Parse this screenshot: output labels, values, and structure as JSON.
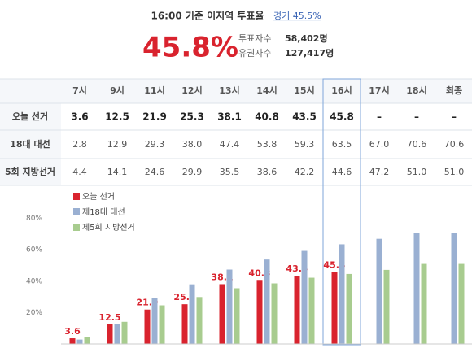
{
  "header": {
    "title": "16:00 기준 이지역 투표율",
    "link": "경기 45.5%",
    "rate": "45.8%",
    "stats": [
      {
        "label": "투표자수",
        "value": "58,402명"
      },
      {
        "label": "유권자수",
        "value": "127,417명"
      }
    ]
  },
  "table": {
    "columns": [
      "7시",
      "9시",
      "11시",
      "12시",
      "13시",
      "14시",
      "15시",
      "16시",
      "17시",
      "18시",
      "최종"
    ],
    "rows": [
      {
        "label": "오늘 선거",
        "cells": [
          "3.6",
          "12.5",
          "21.9",
          "25.3",
          "38.1",
          "40.8",
          "43.5",
          "45.8",
          "–",
          "–",
          "–"
        ]
      },
      {
        "label": "18대 대선",
        "cells": [
          "2.8",
          "12.9",
          "29.3",
          "38.0",
          "47.4",
          "53.8",
          "59.3",
          "63.5",
          "67.0",
          "70.6",
          "70.6"
        ]
      },
      {
        "label": "5회 지방선거",
        "cells": [
          "4.4",
          "14.1",
          "24.6",
          "29.9",
          "35.5",
          "38.6",
          "42.2",
          "44.6",
          "47.2",
          "51.0",
          "51.0"
        ]
      }
    ]
  },
  "chart_data": {
    "type": "bar",
    "categories": [
      null,
      null,
      null,
      null,
      null,
      null,
      null,
      null,
      null,
      null,
      null
    ],
    "series": [
      {
        "name": "오늘 선거",
        "color": "#d9232e",
        "values": [
          3.6,
          12.5,
          21.9,
          25.3,
          38.1,
          40.8,
          43.5,
          45.8,
          null,
          null,
          null
        ]
      },
      {
        "name": "제18대 대선",
        "color": "#9ab0d2",
        "values": [
          2.8,
          12.9,
          29.3,
          38.0,
          47.4,
          53.8,
          59.3,
          63.5,
          67.0,
          70.6,
          70.6
        ]
      },
      {
        "name": "제5회 지방선거",
        "color": "#a8cc8f",
        "values": [
          4.4,
          14.1,
          24.6,
          29.9,
          35.5,
          38.6,
          42.2,
          44.6,
          47.2,
          51.0,
          51.0
        ]
      }
    ],
    "ylim": [
      0,
      100
    ],
    "yticks": [
      {
        "value": 20,
        "label": "20%"
      },
      {
        "value": 40,
        "label": "40%"
      },
      {
        "value": 60,
        "label": "60%"
      },
      {
        "value": 80,
        "label": "80%"
      }
    ],
    "grid": false
  }
}
